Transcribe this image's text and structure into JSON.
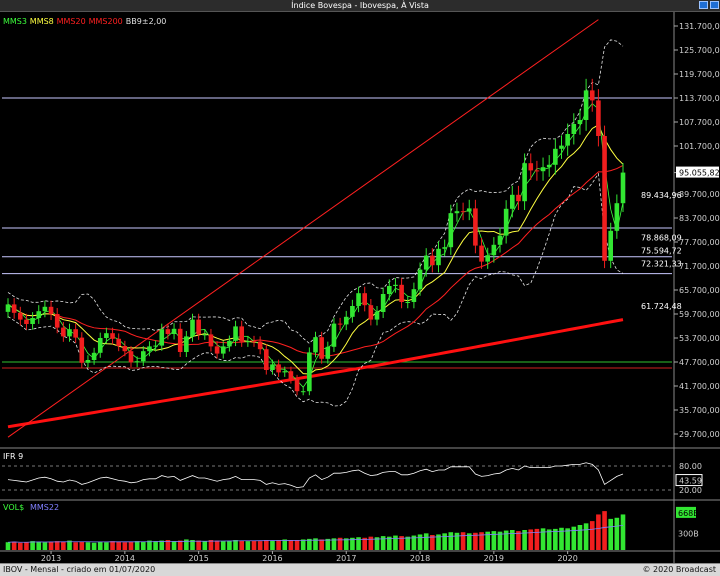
{
  "window": {
    "title": "Índice Bovespa - Ibovespa, À Vista"
  },
  "footer": {
    "left": "IBOV - Mensal - criado em 01/07/2020",
    "right": "© 2020 Broadcast"
  },
  "price_panel": {
    "legend": [
      {
        "label": "MMS3",
        "color": "#3cff3c"
      },
      {
        "label": "MMS8",
        "color": "#ffff40"
      },
      {
        "label": "MMS20",
        "color": "#ff2020"
      },
      {
        "label": "MMS200",
        "color": "#ff2020"
      },
      {
        "label": "BB9±2,00",
        "color": "#e0e0e0"
      }
    ],
    "y_ticks": [
      "131.700,00",
      "125.700,00",
      "119.700,00",
      "113.700,00",
      "107.700,00",
      "101.700,00",
      "95.055,82",
      "89.700,00",
      "83.700,00",
      "77.700,00",
      "71.700,00",
      "65.700,00",
      "59.700,00",
      "53.700,00",
      "47.700,00",
      "41.700,00",
      "35.700,00",
      "29.700,00"
    ],
    "annotations": [
      "89.434,96",
      "78.868,09",
      "75.594,72",
      "72.321,33",
      "61.724,48"
    ]
  },
  "ifr_panel": {
    "title": "IFR 9",
    "ticks": [
      "80.00",
      "43.59",
      "20.00"
    ]
  },
  "vol_panel": {
    "title": "VOL$",
    "ma_label": "MMS22",
    "ticks": [
      "668B",
      "300B"
    ]
  },
  "x_labels": [
    "2013",
    "2014",
    "2015",
    "2016",
    "2017",
    "2018",
    "2019",
    "2020"
  ],
  "chart_data": {
    "type": "candlestick",
    "title": "Índice Bovespa - Ibovespa, À Vista",
    "period": "monthly",
    "ylim": [
      26700,
      134700
    ],
    "x_start": "2012-06",
    "grid": false,
    "horizontal_lines": [
      {
        "value": 113700,
        "color": "#c8c8ff"
      },
      {
        "value": 81200,
        "color": "#c8c8ff"
      },
      {
        "value": 74000,
        "color": "#c8c8ff"
      },
      {
        "value": 69800,
        "color": "#c8c8ff"
      },
      {
        "value": 47700,
        "color": "#30c030"
      },
      {
        "value": 46200,
        "color": "#d02020"
      }
    ],
    "trendline": {
      "from": [
        "2012-06",
        28900
      ],
      "to": [
        "2020-06",
        133300
      ]
    },
    "last_close": 95055.82,
    "closes": [
      62100,
      60000,
      58300,
      57200,
      58700,
      60400,
      61500,
      59700,
      56300,
      54100,
      55900,
      53800,
      47500,
      48200,
      50000,
      53700,
      54900,
      53500,
      51700,
      50400,
      47600,
      47900,
      50400,
      51600,
      51800,
      55900,
      54700,
      56000,
      50200,
      54100,
      58300,
      54600,
      54600,
      51600,
      49800,
      51600,
      53000,
      56600,
      52800,
      52900,
      52800,
      50900,
      45700,
      47100,
      45100,
      45400,
      43400,
      40400,
      40400,
      50100,
      53900,
      48500,
      51500,
      57300,
      57100,
      59000,
      61700,
      64900,
      61900,
      58300,
      60200,
      64700,
      66700,
      67000,
      62700,
      62700,
      65900,
      70800,
      74300,
      71900,
      76000,
      76400,
      84900,
      85400,
      85300,
      86100,
      76800,
      72800,
      74400,
      77000,
      79300,
      86000,
      89500,
      87900,
      97400,
      95600,
      95400,
      96400,
      97000,
      101000,
      101800,
      104700,
      107200,
      108200,
      115600,
      113100,
      104200,
      73000,
      80500,
      87400,
      95056
    ],
    "rsi": [
      46,
      44,
      42,
      40,
      45,
      50,
      52,
      48,
      42,
      40,
      45,
      42,
      34,
      38,
      44,
      50,
      52,
      48,
      44,
      42,
      38,
      40,
      46,
      48,
      48,
      56,
      52,
      54,
      44,
      50,
      56,
      50,
      50,
      46,
      42,
      46,
      48,
      54,
      46,
      46,
      46,
      44,
      34,
      38,
      34,
      36,
      32,
      26,
      28,
      50,
      58,
      46,
      52,
      62,
      62,
      64,
      68,
      70,
      62,
      56,
      58,
      64,
      66,
      66,
      58,
      58,
      62,
      68,
      72,
      66,
      70,
      70,
      78,
      78,
      78,
      78,
      60,
      54,
      56,
      60,
      62,
      70,
      74,
      70,
      80,
      76,
      76,
      76,
      76,
      80,
      80,
      82,
      84,
      84,
      88,
      84,
      70,
      34,
      44,
      54,
      60
    ],
    "volume": [
      140,
      150,
      130,
      140,
      160,
      150,
      140,
      150,
      160,
      150,
      170,
      140,
      150,
      140,
      130,
      150,
      140,
      160,
      150,
      140,
      150,
      160,
      150,
      170,
      160,
      170,
      180,
      160,
      170,
      190,
      180,
      170,
      160,
      180,
      170,
      160,
      170,
      180,
      170,
      160,
      170,
      160,
      180,
      170,
      180,
      190,
      170,
      180,
      190,
      200,
      210,
      190,
      200,
      210,
      220,
      210,
      220,
      230,
      220,
      240,
      230,
      250,
      240,
      260,
      250,
      240,
      260,
      280,
      300,
      270,
      280,
      300,
      320,
      310,
      320,
      300,
      310,
      320,
      330,
      340,
      330,
      350,
      360,
      340,
      360,
      370,
      380,
      390,
      370,
      380,
      400,
      390,
      420,
      450,
      480,
      520,
      640,
      700,
      560,
      580,
      640
    ]
  }
}
